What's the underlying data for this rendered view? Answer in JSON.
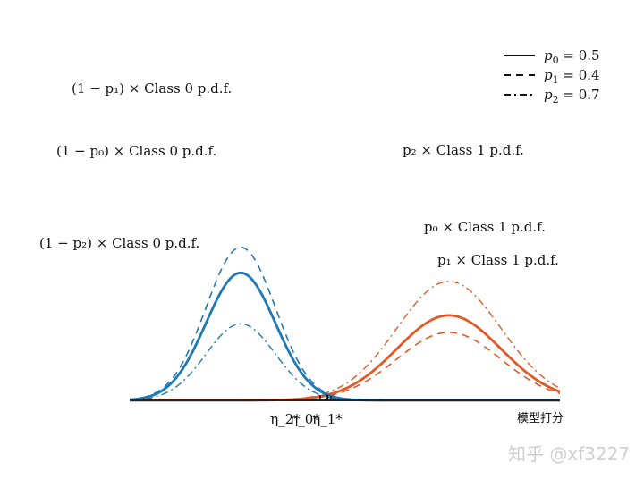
{
  "chart_data": {
    "type": "line",
    "xlabel": "模型打分",
    "watermark": "知乎 @xf3227",
    "colors": {
      "class0": "#1f77b4",
      "class1": "#e05a28",
      "axis": "#222222"
    },
    "x_range": [
      -3.2,
      9.2
    ],
    "class0": {
      "mean": 0,
      "sd": 1
    },
    "class1": {
      "mean": 6,
      "sd": 1.5
    },
    "series": [
      {
        "name": "p_0 = 0.5",
        "p": 0.5,
        "dash": "solid",
        "legend_text": "= 0.5"
      },
      {
        "name": "p_1 = 0.4",
        "p": 0.4,
        "dash": "dashed",
        "legend_text": "= 0.4"
      },
      {
        "name": "p_2 = 0.7",
        "p": 0.7,
        "dash": "dashdot",
        "legend_text": "= 0.7"
      }
    ],
    "thresholds": [
      {
        "label": "η_2*",
        "p": 0.7,
        "dash": "dashdot"
      },
      {
        "label": "η_0*",
        "p": 0.5,
        "dash": "solid"
      },
      {
        "label": "η_1*",
        "p": 0.4,
        "dash": "dashed"
      }
    ],
    "annotations": {
      "c0_p1": "(1 − p₁) × Class 0 p.d.f.",
      "c0_p0": "(1 − p₀) × Class 0 p.d.f.",
      "c0_p2": "(1 − p₂) × Class 0 p.d.f.",
      "c1_p2": "p₂ × Class 1 p.d.f.",
      "c1_p0": "p₀ × Class 1 p.d.f.",
      "c1_p1": "p₁ × Class 1 p.d.f."
    },
    "legend_position": "top-right"
  }
}
